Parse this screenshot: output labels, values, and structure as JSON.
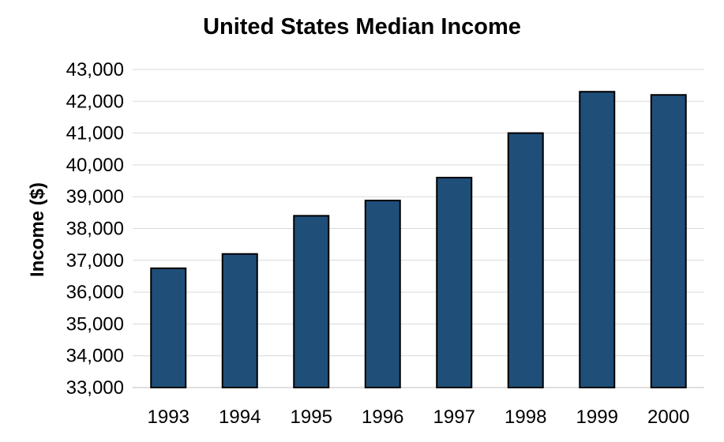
{
  "chart_data": {
    "type": "bar",
    "title": "United States Median Income",
    "xlabel": "",
    "ylabel": "Income ($)",
    "categories": [
      "1993",
      "1994",
      "1995",
      "1996",
      "1997",
      "1998",
      "1999",
      "2000"
    ],
    "values": [
      36750,
      37200,
      38400,
      38880,
      39600,
      41000,
      42300,
      42200
    ],
    "ylim": [
      33000,
      43000
    ],
    "yticks": [
      33000,
      34000,
      35000,
      36000,
      37000,
      38000,
      39000,
      40000,
      41000,
      42000,
      43000
    ],
    "ytick_labels": [
      "33,000",
      "34,000",
      "35,000",
      "36,000",
      "37,000",
      "38,000",
      "39,000",
      "40,000",
      "41,000",
      "42,000",
      "43,000"
    ],
    "grid": true,
    "legend": "none",
    "bar_color": "#1F4E79",
    "bar_edge_color": "#000000",
    "grid_color": "#D9D9D9"
  }
}
